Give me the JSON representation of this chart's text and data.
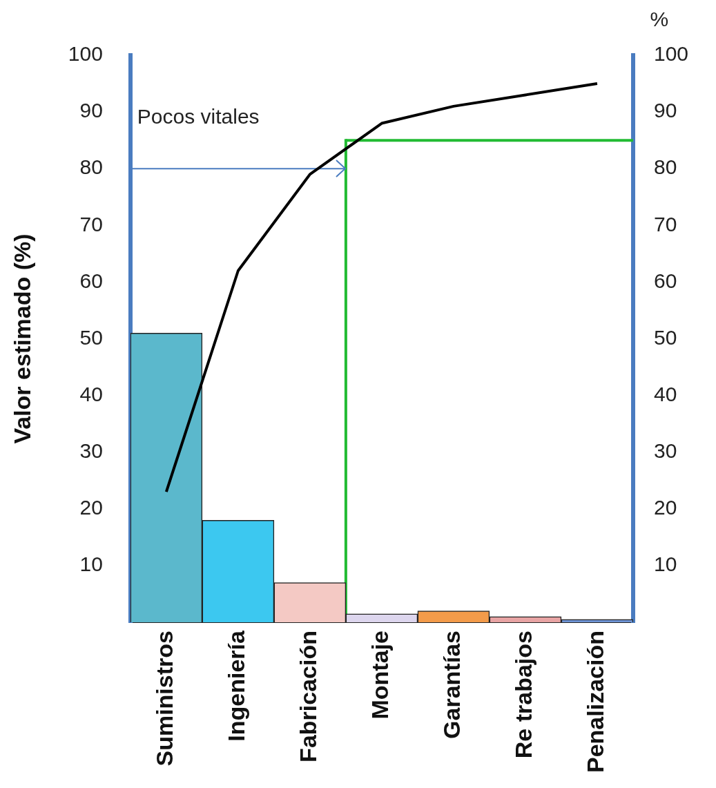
{
  "chart_data": {
    "type": "bar",
    "ylabel": "Valor estimado (%)",
    "y2label": "%",
    "categories": [
      "Suministros",
      "Ingeniería",
      "Fabricación",
      "Montaje",
      "Garantías",
      "Re trabajos",
      "Penalización"
    ],
    "series": [
      {
        "colors": [
          "#5bb8cc",
          "#3cc8f0",
          "#f4c9c4",
          "#ddd6ee",
          "#f39b4a",
          "#e8a4a4",
          "#6f94d4"
        ],
        "values": [
          51,
          18,
          7,
          1.5,
          2,
          1,
          0.5
        ]
      },
      {
        "type": "line",
        "color": "#000000",
        "values": [
          23,
          62,
          79,
          88,
          91,
          93,
          95
        ]
      }
    ],
    "ylim": [
      0,
      100
    ],
    "yticks": [
      10,
      20,
      30,
      40,
      50,
      60,
      70,
      80,
      90,
      100
    ],
    "y2lim": [
      0,
      100
    ],
    "y2ticks": [
      10,
      20,
      30,
      40,
      50,
      60,
      70,
      80,
      90,
      100
    ],
    "ref_lines": [
      {
        "axis": "x",
        "value": "Montaje",
        "color": "#22bb33"
      },
      {
        "axis": "y",
        "value": 85,
        "color": "#22bb33"
      },
      {
        "axis": "y",
        "value": 80,
        "color": "#4a7cc0",
        "label": "Pocos vitales"
      }
    ],
    "grid": false,
    "legend": false
  }
}
